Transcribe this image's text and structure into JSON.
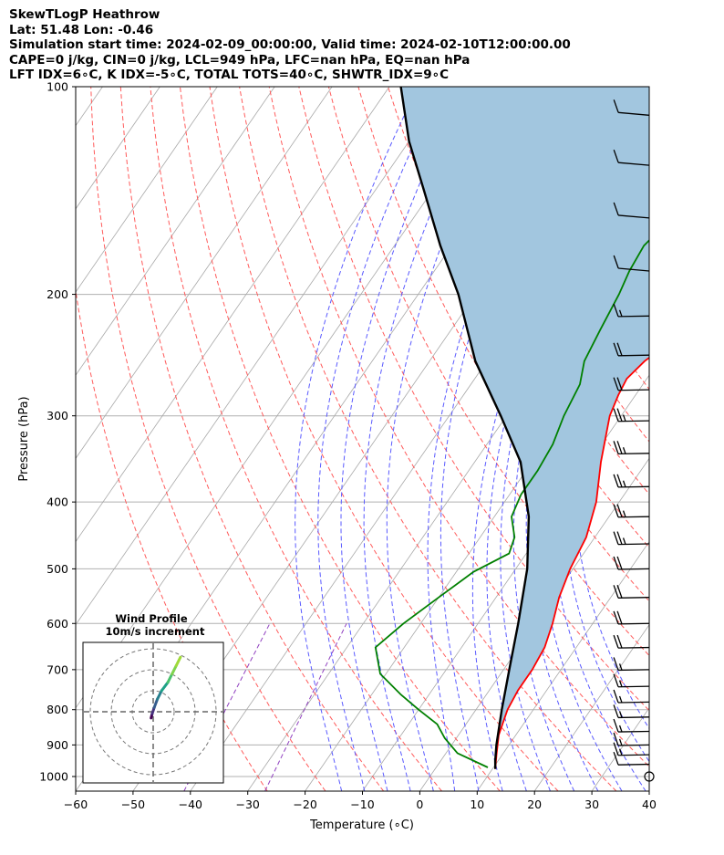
{
  "header": {
    "line1": "SkewTLogP Heathrow",
    "line2": "Lat: 51.48   Lon: -0.46",
    "line3": "Simulation start time: 2024-02-09_00:00:00, Valid time: 2024-02-10T12:00:00.00",
    "line4": "CAPE=0 j/kg, CIN=0 j/kg, LCL=949 hPa, LFC=nan hPa, EQ=nan hPa",
    "line5": "LFT IDX=6∘C, K IDX=-5∘C, TOTAL TOTS=40∘C, SHWTR_IDX=9∘C"
  },
  "chart_data": {
    "type": "line",
    "title": "SkewTLogP Heathrow",
    "xlabel": "Temperature (∘C)",
    "ylabel": "Pressure (hPa)",
    "xlim": [
      -60,
      40
    ],
    "ylim": [
      1050,
      100
    ],
    "y_scale": "log",
    "grid": true,
    "x_ticks": [
      "−60",
      "−50",
      "−40",
      "−30",
      "−20",
      "−10",
      "0",
      "10",
      "20",
      "30",
      "40"
    ],
    "y_ticks": [
      "100",
      "200",
      "300",
      "400",
      "500",
      "600",
      "700",
      "800",
      "900",
      "1000"
    ],
    "colors": {
      "temperature": "#ff0000",
      "dewpoint": "#008000",
      "parcel": "#000000",
      "cape_fill": "#a2c6df",
      "dry_adiabats": "#ff5a5a",
      "moist_adiabats": "#5a5aff",
      "mixing_ratio": "#9040c0",
      "isotherms": "#a8a8a8"
    },
    "series": [
      {
        "name": "temperature",
        "points": [
          [
            10.5,
            975
          ],
          [
            9,
            930
          ],
          [
            7,
            870
          ],
          [
            5.5,
            800
          ],
          [
            5,
            750
          ],
          [
            5,
            700
          ],
          [
            4.5,
            650
          ],
          [
            3,
            600
          ],
          [
            1,
            550
          ],
          [
            -0.5,
            500
          ],
          [
            -1.5,
            450
          ],
          [
            -4,
            400
          ],
          [
            -8,
            350
          ],
          [
            -12,
            300
          ],
          [
            -13,
            280
          ],
          [
            -13.5,
            265
          ],
          [
            -12.5,
            250
          ],
          [
            -9,
            225
          ],
          [
            -5,
            205
          ],
          [
            -1,
            185
          ],
          [
            2,
            170
          ],
          [
            4,
            155
          ],
          [
            6,
            140
          ],
          [
            7.5,
            130
          ],
          [
            10,
            118
          ],
          [
            12.5,
            108
          ],
          [
            14,
            100
          ]
        ]
      },
      {
        "name": "dewpoint",
        "points": [
          [
            9,
            970
          ],
          [
            2,
            925
          ],
          [
            -2,
            880
          ],
          [
            -5,
            840
          ],
          [
            -10,
            800
          ],
          [
            -15,
            760
          ],
          [
            -21,
            710
          ],
          [
            -25,
            650
          ],
          [
            -23,
            600
          ],
          [
            -20,
            550
          ],
          [
            -17,
            505
          ],
          [
            -13,
            475
          ],
          [
            -14,
            450
          ],
          [
            -17,
            420
          ],
          [
            -18,
            390
          ],
          [
            -18,
            360
          ],
          [
            -18.5,
            330
          ],
          [
            -20,
            300
          ],
          [
            -21,
            270
          ],
          [
            -23,
            250
          ],
          [
            -24,
            225
          ],
          [
            -25,
            200
          ],
          [
            -26,
            185
          ],
          [
            -26.5,
            170
          ],
          [
            -25,
            155
          ],
          [
            -22,
            135
          ],
          [
            -18,
            120
          ],
          [
            -13,
            100
          ]
        ]
      },
      {
        "name": "parcel",
        "points": [
          [
            10.5,
            975
          ],
          [
            9.5,
            949
          ],
          [
            7.8,
            900
          ],
          [
            4.5,
            800
          ],
          [
            1,
            700
          ],
          [
            -3,
            600
          ],
          [
            -8,
            500
          ],
          [
            -14,
            420
          ],
          [
            -22,
            350
          ],
          [
            -31,
            300
          ],
          [
            -42,
            250
          ],
          [
            -53,
            200
          ],
          [
            -62,
            170
          ],
          [
            -72,
            140
          ],
          [
            -80,
            120
          ],
          [
            -88,
            100
          ]
        ]
      }
    ],
    "wind_barbs": [
      {
        "p": 1000,
        "speed_kt": 0
      },
      {
        "p": 960,
        "speed_kt": 10
      },
      {
        "p": 930,
        "speed_kt": 15
      },
      {
        "p": 900,
        "speed_kt": 15
      },
      {
        "p": 860,
        "speed_kt": 15
      },
      {
        "p": 820,
        "speed_kt": 15
      },
      {
        "p": 780,
        "speed_kt": 15
      },
      {
        "p": 740,
        "speed_kt": 15
      },
      {
        "p": 700,
        "speed_kt": 15
      },
      {
        "p": 650,
        "speed_kt": 20
      },
      {
        "p": 600,
        "speed_kt": 20
      },
      {
        "p": 550,
        "speed_kt": 20
      },
      {
        "p": 500,
        "speed_kt": 20
      },
      {
        "p": 460,
        "speed_kt": 25
      },
      {
        "p": 420,
        "speed_kt": 25
      },
      {
        "p": 380,
        "speed_kt": 25
      },
      {
        "p": 340,
        "speed_kt": 25
      },
      {
        "p": 305,
        "speed_kt": 25
      },
      {
        "p": 275,
        "speed_kt": 20
      },
      {
        "p": 245,
        "speed_kt": 20
      },
      {
        "p": 215,
        "speed_kt": 15
      },
      {
        "p": 185,
        "speed_kt": 10
      },
      {
        "p": 155,
        "speed_kt": 10
      },
      {
        "p": 130,
        "speed_kt": 10
      },
      {
        "p": 110,
        "speed_kt": 10
      }
    ],
    "hodograph": {
      "title": "Wind Profile",
      "subtitle": "10m/s increment",
      "points": [
        [
          -1,
          3
        ],
        [
          -0.5,
          1
        ],
        [
          0.5,
          -2
        ],
        [
          2,
          -6
        ],
        [
          4,
          -10
        ],
        [
          7,
          -14
        ],
        [
          9,
          -18
        ],
        [
          11,
          -22
        ],
        [
          13,
          -26
        ]
      ],
      "ring_spacing_ms": 10
    }
  }
}
